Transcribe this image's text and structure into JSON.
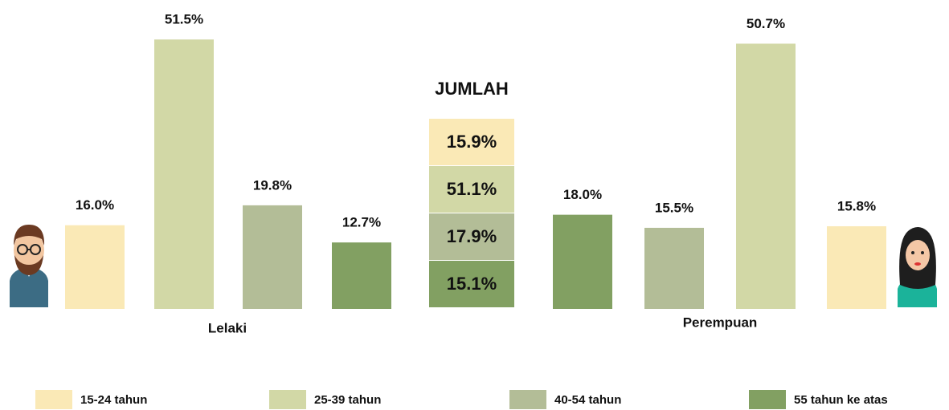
{
  "chart_data": {
    "type": "bar",
    "categories": [
      "Lelaki",
      "Perempuan"
    ],
    "series": [
      {
        "name": "15-24 tahun",
        "color": "#fae9b6",
        "values": [
          16.0,
          15.8
        ],
        "value_labels": [
          "16.0%",
          "15.8%"
        ]
      },
      {
        "name": "25-39 tahun",
        "color": "#d2d8a6",
        "values": [
          51.5,
          50.7
        ],
        "value_labels": [
          "51.5%",
          "50.7%"
        ]
      },
      {
        "name": "40-54 tahun",
        "color": "#b3bd97",
        "values": [
          19.8,
          15.5
        ],
        "value_labels": [
          "19.8%",
          "15.5%"
        ]
      },
      {
        "name": "55 tahun ke atas",
        "color": "#82a062",
        "values": [
          12.7,
          18.0
        ],
        "value_labels": [
          "12.7%",
          "18.0%"
        ]
      }
    ],
    "total": {
      "title": "JUMLAH",
      "values": [
        15.9,
        51.1,
        17.9,
        15.1
      ],
      "value_labels": [
        "15.9%",
        "51.1%",
        "17.9%",
        "15.1%"
      ]
    }
  }
}
